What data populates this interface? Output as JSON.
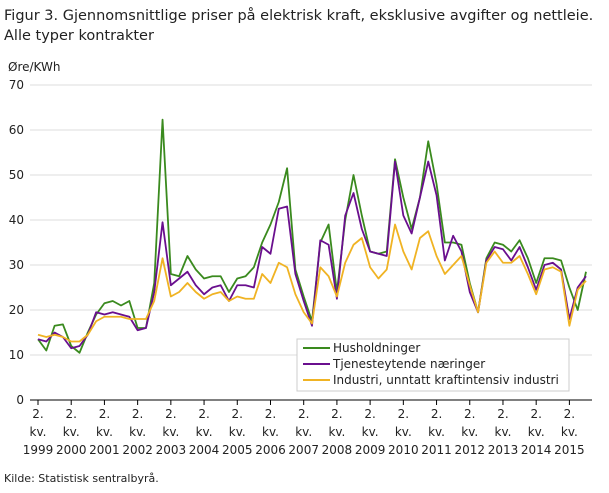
{
  "chart_data": {
    "type": "line",
    "title": [
      "Figur 3. Gjennomsnittlige priser på elektrisk kraft, eksklusive avgifter og nettleie.",
      "Alle typer kontrakter"
    ],
    "y_label": "Øre/KWh",
    "source": "Kilde: Statistisk sentralbyrå.",
    "categories": [
      "2. kv. 1999",
      null,
      null,
      null,
      "2. kv. 2000",
      null,
      null,
      null,
      "2. kv. 2001",
      null,
      null,
      null,
      "2. kv. 2002",
      null,
      null,
      null,
      "2. kv. 2003",
      null,
      null,
      null,
      "2. kv. 2004",
      null,
      null,
      null,
      "2. kv. 2005",
      null,
      null,
      null,
      "2. kv. 2006",
      null,
      null,
      null,
      "2. kv. 2007",
      null,
      null,
      null,
      "2. kv. 2008",
      null,
      null,
      null,
      "2. kv. 2009",
      null,
      null,
      null,
      "2. kv. 2010",
      null,
      null,
      null,
      "2. kv. 2011",
      null,
      null,
      null,
      "2. kv. 2012",
      null,
      null,
      null,
      "2. kv. 2013",
      null,
      null,
      null,
      "2. kv. 2014",
      null,
      null,
      null,
      "2. kv. 2015",
      null,
      null
    ],
    "series": [
      {
        "name": "Husholdninger",
        "color": "#3a8a1e",
        "values": [
          13.5,
          11,
          16.5,
          16.8,
          12,
          10.5,
          15,
          19,
          21.5,
          22,
          21,
          22,
          16,
          16,
          26,
          62.3,
          28,
          27.5,
          32,
          29,
          27,
          27.5,
          27.5,
          24,
          27,
          27.5,
          29.5,
          35,
          39,
          44,
          51.5,
          29,
          23,
          17.5,
          35,
          39,
          24,
          40,
          50,
          41,
          33,
          32.5,
          33,
          53.5,
          45,
          38,
          45,
          57.5,
          48,
          35,
          35,
          34.5,
          26,
          19.5,
          31.5,
          35,
          34.5,
          33,
          35.5,
          31.5,
          26,
          31.5,
          31.5,
          31,
          25,
          20,
          28.5
        ]
      },
      {
        "name": "Tjenesteytende næringer",
        "color": "#6a0f8e",
        "values": [
          13.5,
          13,
          15,
          14,
          11.5,
          12,
          14.5,
          19.5,
          19,
          19.5,
          19,
          18.5,
          15.5,
          16,
          24,
          39.5,
          25.5,
          27,
          28.5,
          25.5,
          23.5,
          25,
          25.5,
          22,
          25.5,
          25.5,
          25,
          34,
          32.5,
          42.5,
          43,
          28,
          22,
          16.5,
          35.5,
          34.5,
          22.5,
          41,
          46,
          38,
          33,
          32.5,
          32,
          53,
          41,
          37,
          45,
          53,
          45.5,
          31,
          36.5,
          33,
          24,
          19.5,
          31,
          34,
          33.5,
          31,
          34,
          29.5,
          24.5,
          30,
          30.5,
          29,
          18,
          25,
          27.5
        ]
      },
      {
        "name": "Industri, unntatt kraftintensiv industri",
        "color": "#f0b323",
        "values": [
          14.5,
          14,
          14.5,
          14,
          13,
          13,
          14.5,
          17.5,
          18.5,
          18.5,
          18.5,
          18,
          18,
          18,
          22,
          31.5,
          23,
          24,
          26,
          24,
          22.5,
          23.5,
          24,
          22,
          23,
          22.5,
          22.5,
          28,
          26,
          30.5,
          29.5,
          23.5,
          19.5,
          17,
          29.5,
          27.5,
          23,
          30.5,
          34.5,
          36,
          29.5,
          27,
          29,
          39,
          33,
          29,
          36,
          37.5,
          32,
          28,
          30,
          32,
          25.5,
          19.5,
          30.5,
          33,
          30.5,
          30.5,
          32,
          28,
          23.5,
          29,
          29.5,
          28.5,
          16.5,
          24.5,
          26.5
        ]
      }
    ],
    "ylim": [
      0,
      70
    ],
    "yticks": [
      0,
      10,
      20,
      30,
      40,
      50,
      60,
      70
    ],
    "grid": true
  }
}
